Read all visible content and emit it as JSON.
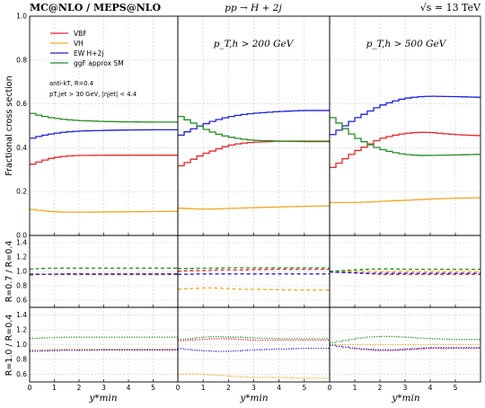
{
  "header": {
    "left": "MC@NLO / MEPS@NLO",
    "center": "pp → H + 2j",
    "right": "√s = 13 TeV"
  },
  "panel_labels": [
    "",
    "p_T,h > 200 GeV",
    "p_T,h > 500 GeV"
  ],
  "legend": [
    {
      "name": "VBF",
      "color": "#e8262a"
    },
    {
      "name": "VH",
      "color": "#f5a623"
    },
    {
      "name": "EW H+2j",
      "color": "#1f1fd8"
    },
    {
      "name": "ggF approx SM",
      "color": "#238b23"
    }
  ],
  "notes": [
    "anti-kT, R=0.4",
    "pT,jet > 30 GeV, |ηjet| < 4.4"
  ],
  "axes": {
    "xlabel": "y*min",
    "ylabel_main": "Fractional cross section",
    "ylabel_r1": "R=0.7 / R=0.4",
    "ylabel_r2": "R=1.0 / R=0.4",
    "xticks": [
      "0",
      "1",
      "2",
      "3",
      "4",
      "5"
    ],
    "yticks_main": [
      "0.0",
      "0.2",
      "0.4",
      "0.6",
      "0.8",
      "1.0"
    ],
    "yticks_r1": [
      "0.6",
      "0.8",
      "1.0",
      "1.2",
      "1.4"
    ],
    "yticks_r2": [
      "0.6",
      "0.8",
      "1.0",
      "1.2",
      "1.4"
    ]
  },
  "chart_data": {
    "type": "line",
    "x_range": [
      0,
      6
    ],
    "ylim_main": [
      0,
      1
    ],
    "ylim_ratio": [
      0.5,
      1.5
    ],
    "panels": [
      {
        "cut": "",
        "x": [
          0,
          0.5,
          1,
          1.5,
          2,
          3,
          4,
          5,
          6
        ],
        "main": {
          "VBF": [
            0.32,
            0.34,
            0.355,
            0.362,
            0.365,
            0.366,
            0.366,
            0.366,
            0.366
          ],
          "VH": [
            0.12,
            0.113,
            0.108,
            0.106,
            0.106,
            0.107,
            0.108,
            0.109,
            0.11
          ],
          "EW H+2j": [
            0.44,
            0.455,
            0.465,
            0.472,
            0.476,
            0.479,
            0.481,
            0.482,
            0.482
          ],
          "ggF approx SM": [
            0.56,
            0.545,
            0.535,
            0.528,
            0.524,
            0.52,
            0.518,
            0.517,
            0.517
          ]
        },
        "r1": {
          "VBF": [
            0.95,
            0.96,
            0.96,
            0.965,
            0.965,
            0.965,
            0.965,
            0.965,
            0.965
          ],
          "VH": [
            0.97,
            0.96,
            0.955,
            0.955,
            0.955,
            0.955,
            0.955,
            0.955,
            0.955
          ],
          "EW H+2j": [
            0.96,
            0.96,
            0.962,
            0.962,
            0.962,
            0.962,
            0.962,
            0.962,
            0.962
          ],
          "ggF approx SM": [
            1.03,
            1.04,
            1.045,
            1.045,
            1.045,
            1.045,
            1.045,
            1.045,
            1.045
          ]
        },
        "r2": {
          "VBF": [
            0.92,
            0.92,
            0.925,
            0.93,
            0.93,
            0.93,
            0.93,
            0.93,
            0.93
          ],
          "VH": [
            0.93,
            0.93,
            0.935,
            0.94,
            0.94,
            0.94,
            0.94,
            0.94,
            0.94
          ],
          "EW H+2j": [
            0.91,
            0.915,
            0.92,
            0.925,
            0.925,
            0.93,
            0.93,
            0.93,
            0.93
          ],
          "ggF approx SM": [
            1.08,
            1.09,
            1.095,
            1.1,
            1.1,
            1.1,
            1.1,
            1.1,
            1.1
          ]
        }
      },
      {
        "cut": "p_T,h > 200 GeV",
        "x": [
          0,
          0.5,
          1,
          1.5,
          2,
          2.5,
          3,
          4,
          5,
          6
        ],
        "main": {
          "VBF": [
            0.31,
            0.34,
            0.37,
            0.39,
            0.41,
            0.42,
            0.425,
            0.43,
            0.43,
            0.43
          ],
          "VH": [
            0.125,
            0.122,
            0.12,
            0.121,
            0.123,
            0.125,
            0.127,
            0.13,
            0.133,
            0.135
          ],
          "EW H+2j": [
            0.45,
            0.48,
            0.505,
            0.525,
            0.54,
            0.55,
            0.557,
            0.565,
            0.57,
            0.57
          ],
          "ggF approx SM": [
            0.55,
            0.52,
            0.49,
            0.465,
            0.45,
            0.44,
            0.434,
            0.43,
            0.428,
            0.428
          ]
        },
        "r1": {
          "VBF": [
            1.0,
            1.01,
            1.01,
            1.02,
            1.02,
            1.02,
            1.025,
            1.03,
            1.03,
            1.03
          ],
          "VH": [
            0.75,
            0.76,
            0.77,
            0.77,
            0.76,
            0.75,
            0.75,
            0.745,
            0.74,
            0.74
          ],
          "EW H+2j": [
            0.96,
            0.96,
            0.965,
            0.965,
            0.965,
            0.965,
            0.965,
            0.965,
            0.965,
            0.965
          ],
          "ggF approx SM": [
            1.04,
            1.04,
            1.045,
            1.045,
            1.05,
            1.05,
            1.05,
            1.05,
            1.05,
            1.05
          ]
        },
        "r2": {
          "VBF": [
            1.05,
            1.06,
            1.07,
            1.08,
            1.08,
            1.07,
            1.06,
            1.06,
            1.06,
            1.06
          ],
          "VH": [
            0.6,
            0.61,
            0.6,
            0.59,
            0.58,
            0.57,
            0.56,
            0.56,
            0.55,
            0.55
          ],
          "EW H+2j": [
            0.95,
            0.93,
            0.92,
            0.91,
            0.91,
            0.92,
            0.93,
            0.94,
            0.95,
            0.95
          ],
          "ggF approx SM": [
            1.07,
            1.08,
            1.1,
            1.11,
            1.1,
            1.1,
            1.09,
            1.08,
            1.08,
            1.08
          ]
        }
      },
      {
        "cut": "p_T,h > 500 GeV",
        "x": [
          0,
          0.5,
          1,
          1.5,
          2,
          2.5,
          3,
          3.5,
          4,
          5,
          6
        ],
        "main": {
          "VBF": [
            0.3,
            0.34,
            0.38,
            0.41,
            0.44,
            0.455,
            0.465,
            0.47,
            0.47,
            0.46,
            0.455
          ],
          "VH": [
            0.15,
            0.15,
            0.15,
            0.152,
            0.155,
            0.158,
            0.16,
            0.163,
            0.166,
            0.17,
            0.172
          ],
          "EW H+2j": [
            0.45,
            0.49,
            0.53,
            0.56,
            0.59,
            0.61,
            0.625,
            0.632,
            0.635,
            0.633,
            0.63
          ],
          "ggF approx SM": [
            0.55,
            0.5,
            0.45,
            0.42,
            0.395,
            0.38,
            0.37,
            0.365,
            0.365,
            0.367,
            0.37
          ]
        },
        "r1": {
          "VBF": [
            1.0,
            0.99,
            0.98,
            0.97,
            0.96,
            0.96,
            0.96,
            0.96,
            0.96,
            0.96,
            0.96
          ],
          "VH": [
            1.0,
            1.0,
            1.0,
            1.0,
            1.0,
            1.0,
            1.0,
            1.0,
            1.0,
            1.0,
            1.0
          ],
          "EW H+2j": [
            0.99,
            0.985,
            0.98,
            0.975,
            0.975,
            0.975,
            0.975,
            0.975,
            0.975,
            0.975,
            0.975
          ],
          "ggF approx SM": [
            1.0,
            1.01,
            1.02,
            1.03,
            1.035,
            1.035,
            1.03,
            1.03,
            1.03,
            1.03,
            1.03
          ]
        },
        "r2": {
          "VBF": [
            1.0,
            0.97,
            0.95,
            0.93,
            0.92,
            0.92,
            0.93,
            0.94,
            0.95,
            0.95,
            0.95
          ],
          "VH": [
            1.0,
            1.0,
            1.0,
            1.0,
            1.0,
            1.0,
            1.0,
            1.0,
            1.0,
            1.0,
            1.0
          ],
          "EW H+2j": [
            1.0,
            0.97,
            0.95,
            0.94,
            0.93,
            0.93,
            0.94,
            0.95,
            0.96,
            0.96,
            0.96
          ],
          "ggF approx SM": [
            1.02,
            1.05,
            1.08,
            1.1,
            1.11,
            1.11,
            1.1,
            1.09,
            1.08,
            1.07,
            1.07
          ]
        }
      }
    ]
  }
}
